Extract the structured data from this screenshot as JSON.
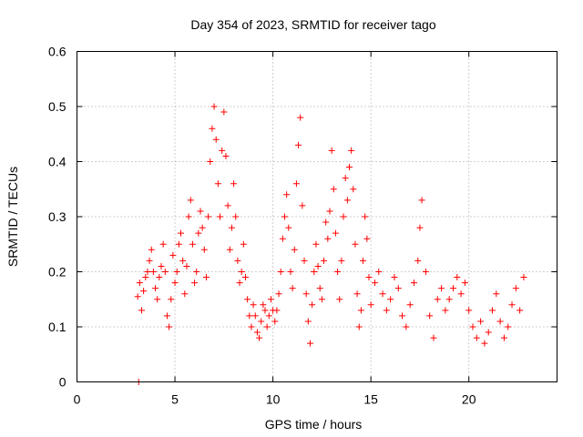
{
  "chart_data": {
    "type": "scatter",
    "title": "Day 354 of 2023, SRMTID for receiver tago",
    "xlabel": "GPS time / hours",
    "ylabel": "SRMTID / TECUs",
    "xlim": [
      0,
      24.5
    ],
    "ylim": [
      0,
      0.6
    ],
    "xticks": [
      0,
      5,
      10,
      15,
      20
    ],
    "xtick_labels": [
      "0",
      "5",
      "10",
      "15",
      "20"
    ],
    "yticks": [
      0,
      0.1,
      0.2,
      0.3,
      0.4,
      0.5,
      0.6
    ],
    "ytick_labels": [
      "0",
      "0.1",
      "0.2",
      "0.3",
      "0.4",
      "0.5",
      "0.6"
    ],
    "grid": true,
    "marker": "+",
    "color": "#ff0000",
    "series": [
      {
        "name": "SRMTID",
        "points": [
          [
            3.15,
            0.0
          ],
          [
            3.1,
            0.155
          ],
          [
            3.2,
            0.18
          ],
          [
            3.3,
            0.13
          ],
          [
            3.4,
            0.165
          ],
          [
            3.5,
            0.19
          ],
          [
            3.6,
            0.2
          ],
          [
            3.7,
            0.22
          ],
          [
            3.8,
            0.24
          ],
          [
            3.9,
            0.2
          ],
          [
            4.0,
            0.17
          ],
          [
            4.1,
            0.15
          ],
          [
            4.2,
            0.19
          ],
          [
            4.3,
            0.21
          ],
          [
            4.4,
            0.25
          ],
          [
            4.5,
            0.2
          ],
          [
            4.6,
            0.12
          ],
          [
            4.7,
            0.1
          ],
          [
            4.8,
            0.15
          ],
          [
            4.9,
            0.23
          ],
          [
            5.0,
            0.18
          ],
          [
            5.1,
            0.2
          ],
          [
            5.2,
            0.25
          ],
          [
            5.3,
            0.27
          ],
          [
            5.4,
            0.22
          ],
          [
            5.5,
            0.16
          ],
          [
            5.6,
            0.21
          ],
          [
            5.7,
            0.3
          ],
          [
            5.8,
            0.33
          ],
          [
            5.9,
            0.25
          ],
          [
            6.0,
            0.18
          ],
          [
            6.1,
            0.2
          ],
          [
            6.2,
            0.27
          ],
          [
            6.3,
            0.31
          ],
          [
            6.4,
            0.28
          ],
          [
            6.5,
            0.24
          ],
          [
            6.6,
            0.19
          ],
          [
            6.7,
            0.3
          ],
          [
            6.8,
            0.4
          ],
          [
            6.9,
            0.46
          ],
          [
            7.0,
            0.5
          ],
          [
            7.1,
            0.44
          ],
          [
            7.2,
            0.36
          ],
          [
            7.3,
            0.3
          ],
          [
            7.4,
            0.42
          ],
          [
            7.5,
            0.49
          ],
          [
            7.6,
            0.41
          ],
          [
            7.7,
            0.32
          ],
          [
            7.8,
            0.24
          ],
          [
            7.9,
            0.28
          ],
          [
            8.0,
            0.36
          ],
          [
            8.1,
            0.3
          ],
          [
            8.2,
            0.22
          ],
          [
            8.3,
            0.18
          ],
          [
            8.4,
            0.2
          ],
          [
            8.5,
            0.25
          ],
          [
            8.6,
            0.19
          ],
          [
            8.7,
            0.15
          ],
          [
            8.8,
            0.12
          ],
          [
            8.9,
            0.1
          ],
          [
            9.0,
            0.14
          ],
          [
            9.1,
            0.12
          ],
          [
            9.2,
            0.09
          ],
          [
            9.3,
            0.08
          ],
          [
            9.4,
            0.11
          ],
          [
            9.5,
            0.14
          ],
          [
            9.6,
            0.13
          ],
          [
            9.7,
            0.1
          ],
          [
            9.8,
            0.12
          ],
          [
            9.9,
            0.15
          ],
          [
            10.0,
            0.13
          ],
          [
            10.1,
            0.11
          ],
          [
            10.2,
            0.13
          ],
          [
            10.3,
            0.16
          ],
          [
            10.4,
            0.2
          ],
          [
            10.5,
            0.26
          ],
          [
            10.6,
            0.3
          ],
          [
            10.7,
            0.34
          ],
          [
            10.8,
            0.28
          ],
          [
            10.9,
            0.2
          ],
          [
            11.0,
            0.17
          ],
          [
            11.1,
            0.24
          ],
          [
            11.2,
            0.36
          ],
          [
            11.3,
            0.43
          ],
          [
            11.4,
            0.48
          ],
          [
            11.5,
            0.32
          ],
          [
            11.6,
            0.22
          ],
          [
            11.7,
            0.16
          ],
          [
            11.8,
            0.11
          ],
          [
            11.9,
            0.07
          ],
          [
            12.0,
            0.14
          ],
          [
            12.1,
            0.2
          ],
          [
            12.2,
            0.25
          ],
          [
            12.3,
            0.21
          ],
          [
            12.4,
            0.17
          ],
          [
            12.5,
            0.15
          ],
          [
            12.6,
            0.22
          ],
          [
            12.7,
            0.29
          ],
          [
            12.8,
            0.26
          ],
          [
            12.9,
            0.31
          ],
          [
            13.0,
            0.42
          ],
          [
            13.1,
            0.35
          ],
          [
            13.2,
            0.27
          ],
          [
            13.3,
            0.2
          ],
          [
            13.4,
            0.15
          ],
          [
            13.5,
            0.22
          ],
          [
            13.6,
            0.3
          ],
          [
            13.7,
            0.37
          ],
          [
            13.8,
            0.33
          ],
          [
            13.9,
            0.39
          ],
          [
            14.0,
            0.42
          ],
          [
            14.1,
            0.35
          ],
          [
            14.2,
            0.25
          ],
          [
            14.3,
            0.16
          ],
          [
            14.4,
            0.1
          ],
          [
            14.5,
            0.13
          ],
          [
            14.6,
            0.22
          ],
          [
            14.7,
            0.3
          ],
          [
            14.8,
            0.26
          ],
          [
            14.9,
            0.19
          ],
          [
            15.0,
            0.14
          ],
          [
            15.2,
            0.18
          ],
          [
            15.4,
            0.2
          ],
          [
            15.6,
            0.16
          ],
          [
            15.8,
            0.13
          ],
          [
            16.0,
            0.15
          ],
          [
            16.2,
            0.19
          ],
          [
            16.4,
            0.17
          ],
          [
            16.6,
            0.12
          ],
          [
            16.8,
            0.1
          ],
          [
            17.0,
            0.14
          ],
          [
            17.2,
            0.18
          ],
          [
            17.4,
            0.22
          ],
          [
            17.5,
            0.28
          ],
          [
            17.6,
            0.33
          ],
          [
            17.8,
            0.2
          ],
          [
            18.0,
            0.12
          ],
          [
            18.2,
            0.08
          ],
          [
            18.4,
            0.15
          ],
          [
            18.6,
            0.17
          ],
          [
            18.8,
            0.13
          ],
          [
            19.0,
            0.15
          ],
          [
            19.2,
            0.17
          ],
          [
            19.4,
            0.19
          ],
          [
            19.6,
            0.16
          ],
          [
            19.8,
            0.18
          ],
          [
            20.0,
            0.13
          ],
          [
            20.2,
            0.1
          ],
          [
            20.4,
            0.08
          ],
          [
            20.6,
            0.11
          ],
          [
            20.8,
            0.07
          ],
          [
            21.0,
            0.09
          ],
          [
            21.2,
            0.13
          ],
          [
            21.4,
            0.16
          ],
          [
            21.6,
            0.11
          ],
          [
            21.8,
            0.08
          ],
          [
            22.0,
            0.1
          ],
          [
            22.2,
            0.14
          ],
          [
            22.4,
            0.17
          ],
          [
            22.6,
            0.13
          ],
          [
            22.8,
            0.19
          ]
        ]
      }
    ]
  }
}
